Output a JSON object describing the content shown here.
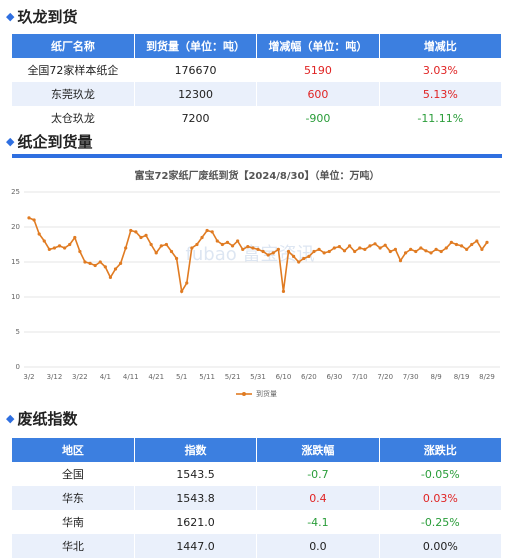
{
  "section1": {
    "title": "玖龙到货",
    "table": {
      "header": [
        "纸厂名称",
        "到货量（单位：吨）",
        "增减幅（单位：吨）",
        "增减比"
      ],
      "rows": [
        [
          "全国72家样本纸企",
          "176670",
          "5190",
          "3.03%"
        ],
        [
          "东莞玖龙",
          "12300",
          "600",
          "5.13%"
        ],
        [
          "太仓玖龙",
          "7200",
          "-900",
          "-11.11%"
        ]
      ]
    }
  },
  "section2": {
    "title": "纸企到货量",
    "chart_data": {
      "type": "line",
      "title": "富宝72家纸厂废纸到货【2024/8/30】（单位：万吨）",
      "watermark": "fubao 富宝资讯",
      "categories": [
        "3/2",
        null,
        null,
        null,
        null,
        "3/12",
        null,
        null,
        null,
        null,
        "3/22",
        null,
        null,
        null,
        null,
        "4/1",
        null,
        null,
        null,
        null,
        "4/11",
        null,
        null,
        null,
        null,
        "4/21",
        null,
        null,
        null,
        null,
        "5/1",
        null,
        null,
        null,
        null,
        "5/11",
        null,
        null,
        null,
        null,
        "5/21",
        null,
        null,
        null,
        null,
        "5/31",
        null,
        null,
        null,
        null,
        "6/10",
        null,
        null,
        null,
        null,
        "6/20",
        null,
        null,
        null,
        null,
        "6/30",
        null,
        null,
        null,
        null,
        "7/10",
        null,
        null,
        null,
        null,
        "7/20",
        null,
        null,
        null,
        null,
        "7/30",
        null,
        null,
        null,
        null,
        "8/9",
        null,
        null,
        null,
        null,
        "8/19",
        null,
        null,
        null,
        null,
        "8/29"
      ],
      "series": [
        {
          "name": "到货量",
          "color": "#e07b22",
          "values": [
            21.3,
            21,
            19,
            18,
            16.8,
            17,
            17.3,
            17,
            17.5,
            18.5,
            16.5,
            15,
            14.8,
            14.5,
            15,
            14.3,
            12.8,
            14,
            14.8,
            17,
            19.5,
            19.3,
            18.5,
            18.8,
            17.5,
            16.3,
            17.3,
            17.5,
            16.5,
            15.5,
            10.8,
            12,
            17,
            17.5,
            18.5,
            19.5,
            19.3,
            18,
            17.5,
            17.8,
            17.3,
            18,
            16.8,
            17.2,
            17,
            16.8,
            16.5,
            16,
            16.3,
            16.8,
            10.8,
            16.5,
            15.8,
            15,
            15.5,
            15.8,
            16.5,
            16.8,
            16.3,
            16.5,
            17,
            17.2,
            16.6,
            17.3,
            16.5,
            17,
            16.8,
            17.3,
            17.6,
            17,
            17.4,
            16.5,
            16.8,
            15.2,
            16.3,
            16.8,
            16.5,
            17,
            16.6,
            16.3,
            16.8,
            16.5,
            17,
            17.8,
            17.5,
            17.3,
            16.8,
            17.5,
            18,
            16.8,
            17.8
          ]
        }
      ],
      "ylim": [
        0,
        25
      ],
      "yticks": [
        0,
        5,
        10,
        15,
        20,
        25
      ],
      "grid": true,
      "legend": "bottom"
    }
  },
  "section3": {
    "title": "废纸指数",
    "table": {
      "header": [
        "地区",
        "指数",
        "涨跌幅",
        "涨跌比"
      ],
      "rows": [
        [
          "全国",
          "1543.5",
          "-0.7",
          "-0.05%"
        ],
        [
          "华东",
          "1543.8",
          "0.4",
          "0.03%"
        ],
        [
          "华南",
          "1621.0",
          "-4.1",
          "-0.25%"
        ],
        [
          "华北",
          "1447.0",
          "0.0",
          "0.00%"
        ]
      ]
    }
  }
}
